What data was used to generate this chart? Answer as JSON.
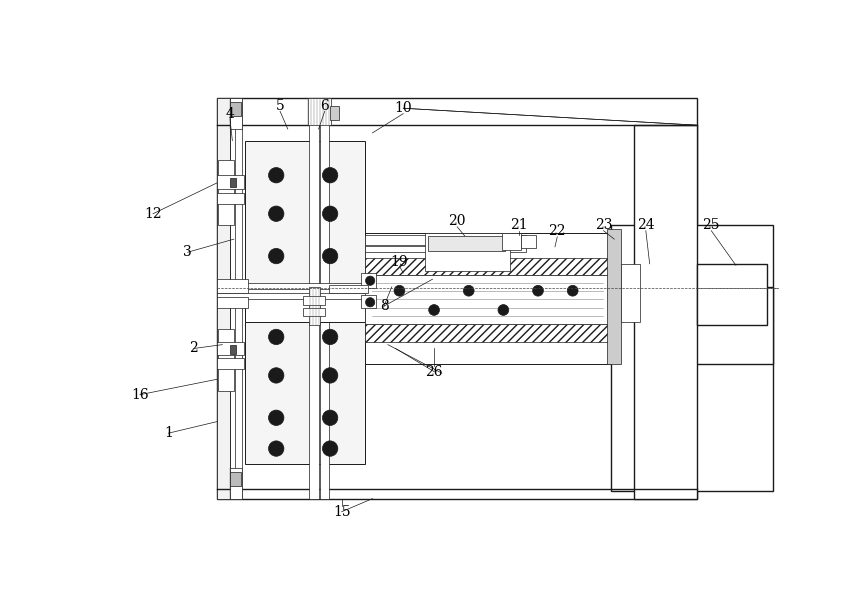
{
  "bg_color": "#ffffff",
  "line_color": "#1a1a1a",
  "fig_width": 8.68,
  "fig_height": 5.94,
  "dpi": 100,
  "label_fontsize": 10,
  "label_color": "#000000"
}
